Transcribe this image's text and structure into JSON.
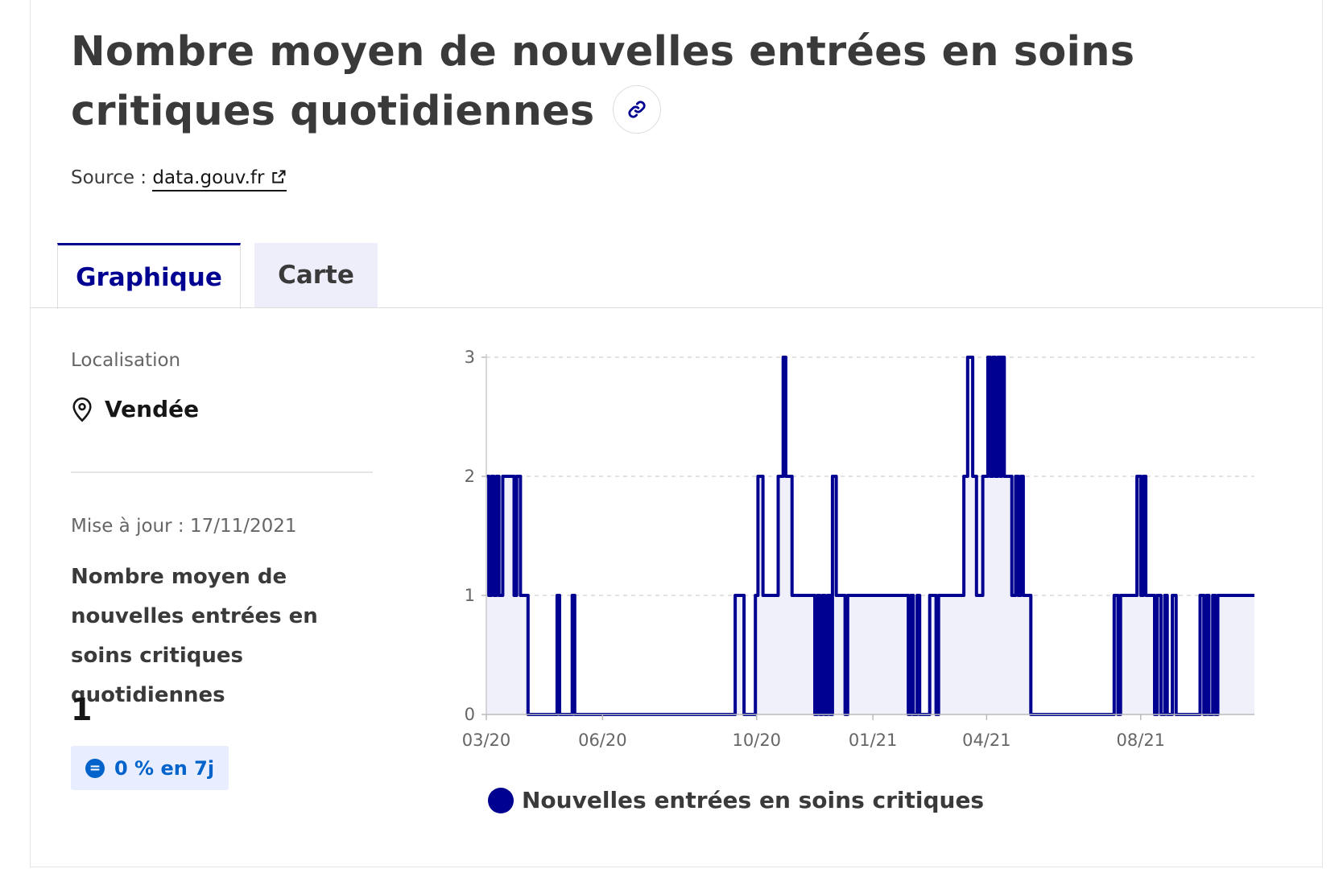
{
  "header": {
    "title": "Nombre moyen de nouvelles entrées en soins critiques quotidiennes",
    "source_prefix": "Source :",
    "source_link": "data.gouv.fr"
  },
  "tabs": [
    {
      "label": "Graphique",
      "active": true
    },
    {
      "label": "Carte",
      "active": false
    }
  ],
  "panel": {
    "location_label": "Localisation",
    "location_value": "Vendée",
    "updated": "Mise à jour : 17/11/2021",
    "indicator_name": "Nombre moyen de nouvelles entrées en soins critiques quotidiennes",
    "indicator_value": "1",
    "evolution": "0 % en 7j"
  },
  "colors": {
    "accent": "#000091",
    "badge_bg": "#e8edff",
    "badge_text": "#0063cb"
  },
  "icons": [
    "link-icon",
    "external-link-icon",
    "location-pin-icon",
    "equal-circle-icon"
  ],
  "chart_data": {
    "type": "line",
    "title": "",
    "xlabel": "",
    "ylabel": "",
    "ylim": [
      0,
      3
    ],
    "yticks": [
      0,
      1,
      2,
      3
    ],
    "x_ticks": [
      {
        "label": "03/20",
        "date": "2020-03-19"
      },
      {
        "label": "06/20",
        "date": "2020-06-19"
      },
      {
        "label": "10/20",
        "date": "2020-10-19"
      },
      {
        "label": "01/21",
        "date": "2021-01-19"
      },
      {
        "label": "04/21",
        "date": "2021-04-19"
      },
      {
        "label": "08/21",
        "date": "2021-08-19"
      }
    ],
    "xlim": [
      "2020-03-19",
      "2021-11-17"
    ],
    "grid": "horizontal-dashed",
    "area_fill": true,
    "series": [
      {
        "name": "Nouvelles entrées en soins critiques",
        "color": "#000091",
        "step_points": [
          [
            "2020-03-19",
            2
          ],
          [
            "2020-03-21",
            1
          ],
          [
            "2020-03-23",
            2
          ],
          [
            "2020-03-25",
            1
          ],
          [
            "2020-03-27",
            2
          ],
          [
            "2020-03-29",
            1
          ],
          [
            "2020-04-01",
            2
          ],
          [
            "2020-04-10",
            1
          ],
          [
            "2020-04-12",
            2
          ],
          [
            "2020-04-15",
            1
          ],
          [
            "2020-04-21",
            0
          ],
          [
            "2020-05-14",
            1
          ],
          [
            "2020-05-16",
            0
          ],
          [
            "2020-05-26",
            1
          ],
          [
            "2020-05-28",
            0
          ],
          [
            "2020-10-02",
            1
          ],
          [
            "2020-10-09",
            0
          ],
          [
            "2020-10-18",
            1
          ],
          [
            "2020-10-20",
            2
          ],
          [
            "2020-10-24",
            1
          ],
          [
            "2020-11-05",
            2
          ],
          [
            "2020-11-09",
            3
          ],
          [
            "2020-11-11",
            2
          ],
          [
            "2020-11-16",
            1
          ],
          [
            "2020-12-04",
            0
          ],
          [
            "2020-12-06",
            1
          ],
          [
            "2020-12-08",
            0
          ],
          [
            "2020-12-10",
            1
          ],
          [
            "2020-12-12",
            0
          ],
          [
            "2020-12-14",
            1
          ],
          [
            "2020-12-16",
            0
          ],
          [
            "2020-12-18",
            2
          ],
          [
            "2020-12-21",
            1
          ],
          [
            "2020-12-28",
            0
          ],
          [
            "2020-12-30",
            1
          ],
          [
            "2021-02-16",
            0
          ],
          [
            "2021-02-18",
            1
          ],
          [
            "2021-02-20",
            0
          ],
          [
            "2021-02-23",
            1
          ],
          [
            "2021-02-25",
            0
          ],
          [
            "2021-03-05",
            1
          ],
          [
            "2021-03-10",
            0
          ],
          [
            "2021-03-12",
            1
          ],
          [
            "2021-04-01",
            2
          ],
          [
            "2021-04-04",
            3
          ],
          [
            "2021-04-08",
            2
          ],
          [
            "2021-04-11",
            1
          ],
          [
            "2021-04-16",
            2
          ],
          [
            "2021-04-20",
            3
          ],
          [
            "2021-04-22",
            2
          ],
          [
            "2021-04-24",
            3
          ],
          [
            "2021-04-26",
            2
          ],
          [
            "2021-04-28",
            3
          ],
          [
            "2021-04-30",
            2
          ],
          [
            "2021-05-01",
            3
          ],
          [
            "2021-05-03",
            2
          ],
          [
            "2021-05-09",
            1
          ],
          [
            "2021-05-12",
            2
          ],
          [
            "2021-05-14",
            1
          ],
          [
            "2021-05-16",
            2
          ],
          [
            "2021-05-18",
            1
          ],
          [
            "2021-05-24",
            0
          ],
          [
            "2021-07-29",
            1
          ],
          [
            "2021-08-01",
            0
          ],
          [
            "2021-08-03",
            1
          ],
          [
            "2021-08-16",
            2
          ],
          [
            "2021-08-19",
            1
          ],
          [
            "2021-08-21",
            2
          ],
          [
            "2021-08-23",
            1
          ],
          [
            "2021-08-30",
            0
          ],
          [
            "2021-09-01",
            1
          ],
          [
            "2021-09-04",
            0
          ],
          [
            "2021-09-07",
            1
          ],
          [
            "2021-09-09",
            0
          ],
          [
            "2021-09-13",
            1
          ],
          [
            "2021-09-16",
            0
          ],
          [
            "2021-10-05",
            1
          ],
          [
            "2021-10-08",
            0
          ],
          [
            "2021-10-10",
            1
          ],
          [
            "2021-10-12",
            0
          ],
          [
            "2021-10-15",
            1
          ],
          [
            "2021-10-17",
            0
          ],
          [
            "2021-10-19",
            1
          ],
          [
            "2021-11-17",
            1
          ]
        ]
      }
    ],
    "legend": "bottom-left"
  }
}
